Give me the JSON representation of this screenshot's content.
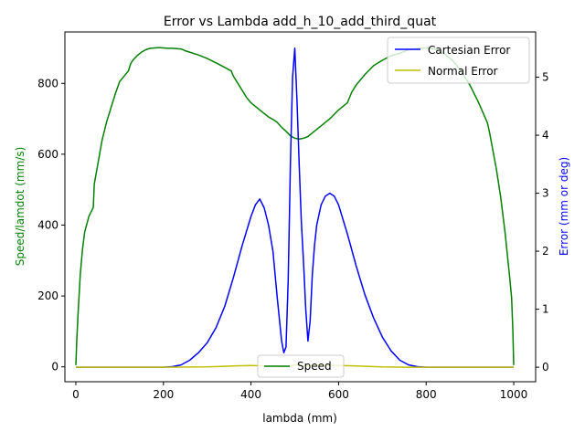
{
  "chart_data": {
    "type": "line",
    "title": "Error vs Lambda add_h_10_add_third_quat",
    "xlabel": "lambda (mm)",
    "ylabel_left": "Speed/lamdot (mm/s)",
    "ylabel_right": "Error (mm or deg)",
    "xlim": [
      -25,
      1050
    ],
    "ylim_left": [
      -42,
      945
    ],
    "ylim_right": [
      -0.25,
      5.78
    ],
    "x_ticks": [
      0,
      200,
      400,
      600,
      800,
      1000
    ],
    "y_ticks_left": [
      0,
      200,
      400,
      600,
      800
    ],
    "y_ticks_right": [
      0,
      1,
      2,
      3,
      4,
      5
    ],
    "grid": false,
    "legends": [
      {
        "placement": "upper right",
        "entries": [
          "Cartesian Error",
          "Normal Error"
        ]
      },
      {
        "placement": "lower center",
        "entries": [
          "Speed"
        ]
      }
    ],
    "series": [
      {
        "name": "Speed",
        "axis": "left",
        "color": "#008000",
        "x": [
          0,
          2,
          5,
          10,
          15,
          20,
          30,
          40,
          42,
          50,
          60,
          70,
          80,
          90,
          100,
          110,
          120,
          125,
          130,
          140,
          150,
          160,
          170,
          180,
          190,
          200,
          210,
          220,
          240,
          250,
          260,
          280,
          300,
          320,
          340,
          355,
          360,
          370,
          380,
          390,
          400,
          420,
          440,
          450,
          460,
          470,
          480,
          490,
          500,
          510,
          520,
          530,
          540,
          560,
          580,
          600,
          620,
          630,
          640,
          660,
          680,
          700,
          720,
          740,
          760,
          780,
          800,
          820,
          840,
          860,
          880,
          900,
          920,
          940,
          945,
          960,
          970,
          980,
          990,
          995,
          998,
          1000
        ],
        "values": [
          5,
          70,
          150,
          260,
          330,
          380,
          425,
          450,
          515,
          570,
          640,
          690,
          730,
          770,
          805,
          820,
          835,
          855,
          865,
          878,
          888,
          895,
          899,
          900,
          901,
          900,
          899,
          899,
          897,
          892,
          888,
          880,
          870,
          858,
          845,
          835,
          820,
          800,
          780,
          760,
          745,
          725,
          705,
          698,
          690,
          676,
          665,
          652,
          645,
          643,
          645,
          650,
          660,
          680,
          700,
          725,
          745,
          775,
          795,
          825,
          850,
          865,
          878,
          885,
          895,
          898,
          900,
          897,
          885,
          865,
          835,
          795,
          745,
          688,
          660,
          560,
          480,
          380,
          260,
          195,
          100,
          5
        ]
      },
      {
        "name": "Cartesian Error",
        "axis": "right",
        "color": "#0000ff",
        "x": [
          0,
          100,
          200,
          220,
          240,
          260,
          280,
          300,
          320,
          340,
          360,
          380,
          400,
          410,
          420,
          430,
          440,
          450,
          460,
          470,
          475,
          480,
          485,
          490,
          495,
          500,
          505,
          510,
          515,
          520,
          525,
          530,
          535,
          540,
          545,
          550,
          560,
          570,
          580,
          590,
          600,
          620,
          640,
          660,
          680,
          700,
          720,
          740,
          760,
          780,
          800,
          900,
          1000
        ],
        "values": [
          0.0,
          0.0,
          0.0,
          0.01,
          0.04,
          0.12,
          0.25,
          0.42,
          0.68,
          1.05,
          1.55,
          2.1,
          2.6,
          2.8,
          2.9,
          2.75,
          2.45,
          2.0,
          1.2,
          0.45,
          0.25,
          0.35,
          1.5,
          3.5,
          5.0,
          5.5,
          4.6,
          3.5,
          2.5,
          1.8,
          1.0,
          0.45,
          0.8,
          1.6,
          2.1,
          2.45,
          2.8,
          2.95,
          3.0,
          2.95,
          2.8,
          2.3,
          1.75,
          1.25,
          0.85,
          0.52,
          0.28,
          0.12,
          0.04,
          0.01,
          0.0,
          0.0,
          0.0
        ]
      },
      {
        "name": "Normal Error",
        "axis": "right",
        "color": "#bfbf00",
        "x": [
          0,
          50,
          100,
          200,
          300,
          350,
          400,
          450,
          480,
          500,
          530,
          550,
          600,
          650,
          700,
          750,
          800,
          900,
          1000
        ],
        "values": [
          0.0,
          0.0,
          0.0,
          0.0,
          0.005,
          0.02,
          0.03,
          0.02,
          0.008,
          0.04,
          0.02,
          0.04,
          0.03,
          0.02,
          0.005,
          0.0,
          0.0,
          0.0,
          0.0
        ]
      }
    ]
  }
}
